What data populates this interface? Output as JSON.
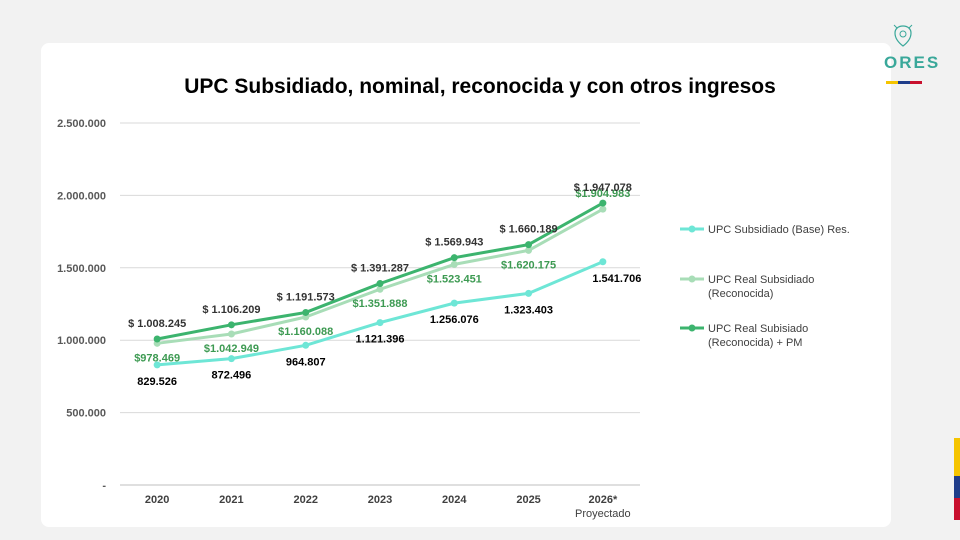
{
  "brand": {
    "logo_text": "ORES",
    "emblem": "coat-of-arms-icon",
    "colors": [
      "#f5c400",
      "#1f3d8a",
      "#c8102e"
    ]
  },
  "chart_data": {
    "type": "line",
    "title": "UPC Subsidiado, nominal, reconocida y con otros ingresos",
    "categories": [
      "2020",
      "2021",
      "2022",
      "2023",
      "2024",
      "2025",
      "2026*"
    ],
    "category_note": "Proyectado",
    "ylim": [
      0,
      2500000
    ],
    "yticks": [
      {
        "value": 0,
        "label": "-"
      },
      {
        "value": 500000,
        "label": "500.000"
      },
      {
        "value": 1000000,
        "label": "1.000.000"
      },
      {
        "value": 1500000,
        "label": "1.500.000"
      },
      {
        "value": 2000000,
        "label": "2.000.000"
      },
      {
        "value": 2500000,
        "label": "2.500.000"
      }
    ],
    "grid": true,
    "legend_position": "right",
    "series": [
      {
        "name": "UPC Subsidiado (Base) Res.",
        "color": "#6ee6d6",
        "label_color": "#000000",
        "values": [
          829526,
          872496,
          964807,
          1121396,
          1256076,
          1323403,
          1541706
        ],
        "labels": [
          "829.526",
          "872.496",
          "964.807",
          "1.121.396",
          "1.256.076",
          "1.323.403",
          "1.541.706"
        ]
      },
      {
        "name": "UPC Real Subsidiado (Reconocida)",
        "color": "#a8ddb7",
        "label_color": "#3d9a52",
        "values": [
          978469,
          1042949,
          1160088,
          1351888,
          1523451,
          1620175,
          1904983
        ],
        "labels": [
          "$978.469",
          "$1.042.949",
          "$1.160.088",
          "$1.351.888",
          "$1.523.451",
          "$1.620.175",
          "$1.904.983"
        ]
      },
      {
        "name": "UPC Real Subisiado (Reconocida) + PM",
        "color": "#3cb46e",
        "label_color": "#333333",
        "values": [
          1008245,
          1106209,
          1191573,
          1391287,
          1569943,
          1660189,
          1947078
        ],
        "labels": [
          "$ 1.008.245",
          "$ 1.106.209",
          "$ 1.191.573",
          "$ 1.391.287",
          "$ 1.569.943",
          "$ 1.660.189",
          "$ 1.947.078"
        ]
      }
    ]
  }
}
